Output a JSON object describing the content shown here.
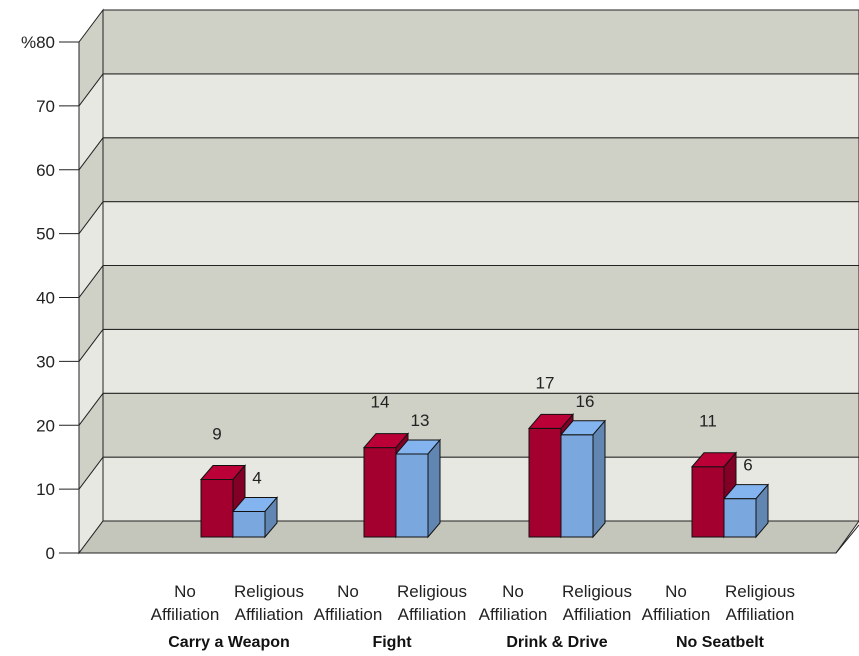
{
  "chart_data": {
    "type": "bar",
    "title": "",
    "xlabel": "",
    "ylabel": "",
    "y_unit_prefix": "%",
    "ylim": [
      0,
      80
    ],
    "y_ticks": [
      "0",
      "10",
      "20",
      "30",
      "40",
      "50",
      "60",
      "70",
      "%80"
    ],
    "groups": [
      "Carry a Weapon",
      "Fight",
      "Drink & Drive",
      "No Seatbelt"
    ],
    "sub_categories": [
      [
        "No",
        "Affiliation"
      ],
      [
        "Religious",
        "Affiliation"
      ]
    ],
    "series": [
      {
        "name": "No Affiliation",
        "values": [
          9,
          14,
          17,
          11
        ],
        "color": "#a30030"
      },
      {
        "name": "Religious Affiliation",
        "values": [
          4,
          13,
          16,
          6
        ],
        "color": "#7aa7de"
      }
    ],
    "style": "3d",
    "grid": true,
    "band_colors": [
      "#cfd0c6",
      "#e8e8e2"
    ],
    "floor_color": "#c4c5bb"
  }
}
